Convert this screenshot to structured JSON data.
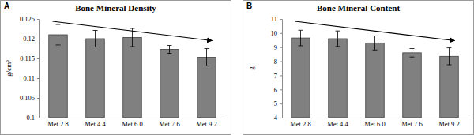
{
  "chart_data": [
    {
      "type": "bar",
      "panel": "A",
      "title": "Bone Mineral Density",
      "y_label": "g/cm³",
      "categories": [
        "Met 2.8",
        "Met 4.4",
        "Met 6.0",
        "Met 7.6",
        "Met 9.2"
      ],
      "values": [
        0.121,
        0.12,
        0.1203,
        0.1173,
        0.1153
      ],
      "errors": [
        0.0026,
        0.0021,
        0.0023,
        0.001,
        0.0022
      ],
      "color": "#808080",
      "ylim": [
        0.1,
        0.125
      ],
      "yticks": [
        0.1,
        0.105,
        0.11,
        0.115,
        0.12,
        0.125
      ],
      "grid": false
    },
    {
      "type": "bar",
      "panel": "B",
      "title": "Bone Mineral Content",
      "y_label": "g",
      "categories": [
        "Met 2.8",
        "Met 4.4",
        "Met 6.0",
        "Met 7.6",
        "Met 9.2"
      ],
      "values": [
        9.65,
        9.6,
        9.3,
        8.6,
        8.35
      ],
      "errors": [
        0.55,
        0.55,
        0.5,
        0.3,
        0.6
      ],
      "color": "#808080",
      "ylim": [
        4,
        11
      ],
      "yticks": [
        4,
        5,
        6,
        7,
        8,
        9,
        10,
        11
      ],
      "grid": false
    }
  ]
}
